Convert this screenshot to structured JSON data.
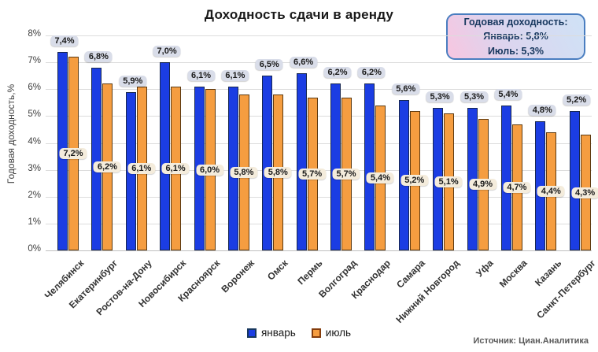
{
  "title": "Доходность сдачи в аренду",
  "infobox": {
    "line1": "Годовая доходность:",
    "line2": "Январь: 5,8%",
    "line3": "Июль: 5,3%"
  },
  "legend": {
    "january": "январь",
    "july": "июль"
  },
  "source": "Источник: Циан.Аналитика",
  "colors": {
    "january_bar": "#1b3de3",
    "january_border": "#17274f",
    "july_bar": "#f59d40",
    "july_border": "#5d3a11",
    "january_label_bg": "#d9dde9",
    "july_label_bg": "#f4ecdc",
    "infobox_border": "#4a7ec0",
    "infobox_gradient_from": "#f8c6e0",
    "infobox_gradient_to": "#cfe2f6",
    "infobox_text": "#17375e",
    "gridline": "#dcdcdc"
  },
  "chart_data": {
    "type": "bar",
    "title": "Доходность сдачи в аренду",
    "xlabel": "",
    "ylabel": "Годовая доходность,%",
    "ylim": [
      0,
      8
    ],
    "yticks": [
      "0%",
      "1%",
      "2%",
      "3%",
      "4%",
      "5%",
      "6%",
      "7%",
      "8%"
    ],
    "grid": true,
    "legend_position": "bottom",
    "annotation": "Годовая доходность: Январь: 5,8% Июль: 5,3%",
    "categories": [
      "Челябинск",
      "Екатеринбург",
      "Ростов-на-Дону",
      "Новосибирск",
      "Красноярск",
      "Воронеж",
      "Омск",
      "Пермь",
      "Волгоград",
      "Краснодар",
      "Самара",
      "Нижний Новгород",
      "Уфа",
      "Москва",
      "Казань",
      "Санкт-Петербург"
    ],
    "series": [
      {
        "name": "январь",
        "color": "#1b3de3",
        "values": [
          7.4,
          6.8,
          5.9,
          7.0,
          6.1,
          6.1,
          6.5,
          6.6,
          6.2,
          6.2,
          5.6,
          5.3,
          5.3,
          5.4,
          4.8,
          5.2
        ],
        "labels": [
          "7,4%",
          "6,8%",
          "5,9%",
          "7,0%",
          "6,1%",
          "6,1%",
          "6,5%",
          "6,6%",
          "6,2%",
          "6,2%",
          "5,6%",
          "5,3%",
          "5,3%",
          "5,4%",
          "4,8%",
          "5,2%"
        ]
      },
      {
        "name": "июль",
        "color": "#f59d40",
        "values": [
          7.2,
          6.2,
          6.1,
          6.1,
          6.0,
          5.8,
          5.8,
          5.7,
          5.7,
          5.4,
          5.2,
          5.1,
          4.9,
          4.7,
          4.4,
          4.3
        ],
        "labels": [
          "7,2%",
          "6,2%",
          "6,1%",
          "6,1%",
          "6,0%",
          "5,8%",
          "5,8%",
          "5,7%",
          "5,7%",
          "5,4%",
          "5,2%",
          "5,1%",
          "4,9%",
          "4,7%",
          "4,4%",
          "4,3%"
        ]
      }
    ]
  }
}
